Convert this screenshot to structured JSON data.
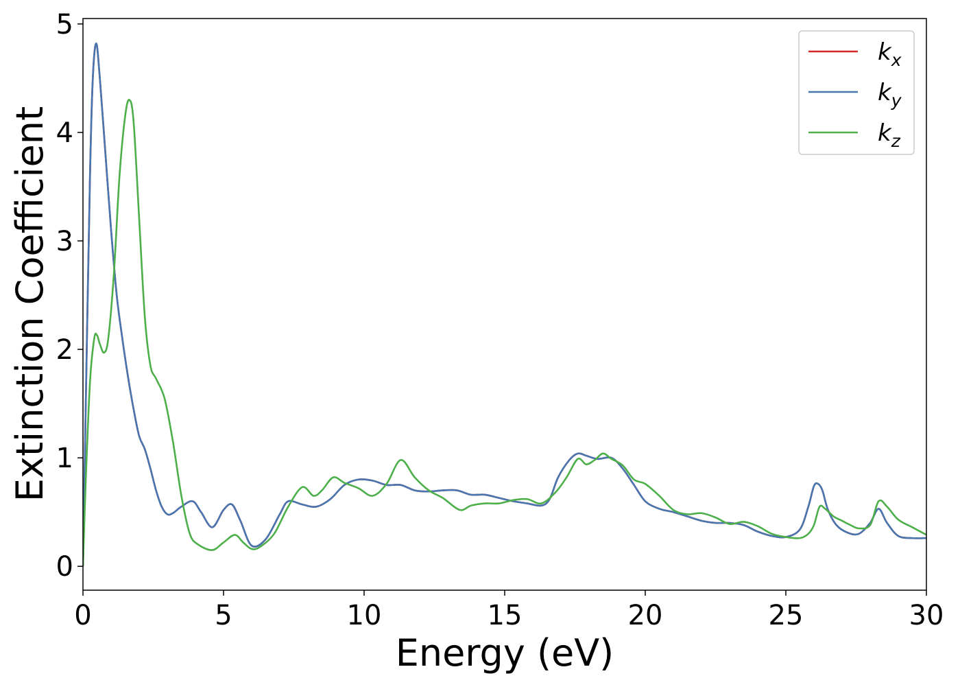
{
  "chart_data": {
    "type": "line",
    "title": "",
    "xlabel": "Energy (eV)",
    "ylabel": "Extinction Coefficient",
    "xlim": [
      0,
      30
    ],
    "ylim": [
      -0.22,
      5.05
    ],
    "xticks": [
      0,
      5,
      10,
      15,
      20,
      25,
      30
    ],
    "yticks": [
      0,
      1,
      2,
      3,
      4,
      5
    ],
    "grid": false,
    "legend_position": "top-right",
    "series": [
      {
        "name": "k_x",
        "legend_base": "k",
        "legend_sub": "x",
        "color": "#d62728",
        "x": [
          0,
          0.1,
          0.25,
          0.35,
          0.47,
          0.6,
          0.8,
          1.0,
          1.2,
          1.4,
          1.6,
          1.8,
          2.0,
          2.2,
          2.4,
          2.6,
          2.8,
          3.0,
          3.2,
          3.5,
          3.9,
          4.2,
          4.6,
          5.0,
          5.3,
          5.6,
          6.0,
          6.5,
          7.0,
          7.3,
          7.8,
          8.3,
          8.8,
          9.3,
          9.8,
          10.3,
          10.8,
          11.3,
          11.8,
          12.3,
          12.8,
          13.3,
          13.8,
          14.3,
          14.8,
          15.3,
          15.8,
          16.3,
          16.6,
          16.9,
          17.3,
          17.6,
          17.9,
          18.3,
          18.8,
          19.2,
          19.6,
          20.0,
          20.5,
          21.0,
          21.5,
          22.0,
          22.5,
          23.0,
          23.5,
          24.0,
          24.5,
          25.0,
          25.5,
          25.8,
          26.0,
          26.15,
          26.3,
          26.5,
          26.8,
          27.2,
          27.6,
          28.0,
          28.3,
          28.6,
          29.0,
          29.5,
          30.0
        ],
        "y": [
          0,
          1.5,
          3.6,
          4.5,
          4.82,
          4.5,
          3.8,
          3.1,
          2.5,
          2.1,
          1.75,
          1.45,
          1.2,
          1.08,
          0.9,
          0.7,
          0.55,
          0.48,
          0.49,
          0.55,
          0.6,
          0.5,
          0.36,
          0.52,
          0.57,
          0.42,
          0.19,
          0.25,
          0.48,
          0.6,
          0.57,
          0.55,
          0.62,
          0.75,
          0.8,
          0.79,
          0.75,
          0.75,
          0.7,
          0.69,
          0.7,
          0.7,
          0.66,
          0.66,
          0.63,
          0.6,
          0.58,
          0.56,
          0.62,
          0.82,
          0.98,
          1.04,
          1.02,
          0.99,
          1.0,
          0.9,
          0.75,
          0.6,
          0.53,
          0.5,
          0.46,
          0.42,
          0.4,
          0.4,
          0.38,
          0.32,
          0.28,
          0.27,
          0.34,
          0.55,
          0.74,
          0.76,
          0.7,
          0.52,
          0.38,
          0.31,
          0.3,
          0.4,
          0.53,
          0.4,
          0.28,
          0.26,
          0.26
        ]
      },
      {
        "name": "k_y",
        "legend_base": "k",
        "legend_sub": "y",
        "color": "#4876b0",
        "x": [
          0,
          0.1,
          0.25,
          0.35,
          0.47,
          0.6,
          0.8,
          1.0,
          1.2,
          1.4,
          1.6,
          1.8,
          2.0,
          2.2,
          2.4,
          2.6,
          2.8,
          3.0,
          3.2,
          3.5,
          3.9,
          4.2,
          4.6,
          5.0,
          5.3,
          5.6,
          6.0,
          6.5,
          7.0,
          7.3,
          7.8,
          8.3,
          8.8,
          9.3,
          9.8,
          10.3,
          10.8,
          11.3,
          11.8,
          12.3,
          12.8,
          13.3,
          13.8,
          14.3,
          14.8,
          15.3,
          15.8,
          16.3,
          16.6,
          16.9,
          17.3,
          17.6,
          17.9,
          18.3,
          18.8,
          19.2,
          19.6,
          20.0,
          20.5,
          21.0,
          21.5,
          22.0,
          22.5,
          23.0,
          23.5,
          24.0,
          24.5,
          25.0,
          25.5,
          25.8,
          26.0,
          26.15,
          26.3,
          26.5,
          26.8,
          27.2,
          27.6,
          28.0,
          28.3,
          28.6,
          29.0,
          29.5,
          30.0
        ],
        "y": [
          0,
          1.5,
          3.6,
          4.5,
          4.82,
          4.5,
          3.8,
          3.1,
          2.5,
          2.1,
          1.75,
          1.45,
          1.2,
          1.08,
          0.9,
          0.7,
          0.55,
          0.48,
          0.49,
          0.55,
          0.6,
          0.5,
          0.36,
          0.52,
          0.57,
          0.42,
          0.19,
          0.25,
          0.48,
          0.6,
          0.57,
          0.55,
          0.62,
          0.75,
          0.8,
          0.79,
          0.75,
          0.75,
          0.7,
          0.69,
          0.7,
          0.7,
          0.66,
          0.66,
          0.63,
          0.6,
          0.58,
          0.56,
          0.62,
          0.82,
          0.98,
          1.04,
          1.02,
          0.99,
          1.0,
          0.9,
          0.75,
          0.6,
          0.53,
          0.5,
          0.46,
          0.42,
          0.4,
          0.4,
          0.38,
          0.32,
          0.28,
          0.27,
          0.34,
          0.55,
          0.74,
          0.76,
          0.7,
          0.52,
          0.38,
          0.31,
          0.3,
          0.4,
          0.53,
          0.4,
          0.28,
          0.26,
          0.26
        ]
      },
      {
        "name": "k_z",
        "legend_base": "k",
        "legend_sub": "z",
        "color": "#4daf4a",
        "x": [
          0,
          0.1,
          0.25,
          0.4,
          0.5,
          0.6,
          0.75,
          0.9,
          1.1,
          1.3,
          1.5,
          1.65,
          1.8,
          2.0,
          2.2,
          2.4,
          2.6,
          2.9,
          3.2,
          3.5,
          3.8,
          4.1,
          4.6,
          5.0,
          5.4,
          5.7,
          6.0,
          6.3,
          6.8,
          7.3,
          7.8,
          8.2,
          8.5,
          8.9,
          9.3,
          9.8,
          10.3,
          10.8,
          11.3,
          11.8,
          12.3,
          12.8,
          13.4,
          13.8,
          14.3,
          14.8,
          15.3,
          15.8,
          16.3,
          16.8,
          17.2,
          17.6,
          17.9,
          18.2,
          18.5,
          18.8,
          19.2,
          19.6,
          20.0,
          20.5,
          21.0,
          21.5,
          22.0,
          22.5,
          23.0,
          23.5,
          24.0,
          24.5,
          25.0,
          25.5,
          25.8,
          26.0,
          26.2,
          26.4,
          26.7,
          27.0,
          27.3,
          27.6,
          28.0,
          28.3,
          28.6,
          29.0,
          29.5,
          30.0
        ],
        "y": [
          0,
          0.8,
          1.7,
          2.1,
          2.13,
          2.05,
          1.97,
          2.1,
          2.7,
          3.6,
          4.15,
          4.3,
          4.1,
          3.2,
          2.3,
          1.85,
          1.73,
          1.55,
          1.15,
          0.65,
          0.3,
          0.2,
          0.15,
          0.22,
          0.29,
          0.22,
          0.16,
          0.18,
          0.3,
          0.55,
          0.73,
          0.65,
          0.7,
          0.82,
          0.77,
          0.72,
          0.65,
          0.76,
          0.98,
          0.82,
          0.7,
          0.63,
          0.52,
          0.56,
          0.58,
          0.58,
          0.61,
          0.62,
          0.58,
          0.68,
          0.82,
          0.99,
          0.94,
          0.98,
          1.04,
          0.99,
          0.93,
          0.8,
          0.76,
          0.65,
          0.52,
          0.48,
          0.49,
          0.45,
          0.39,
          0.41,
          0.37,
          0.3,
          0.27,
          0.26,
          0.3,
          0.38,
          0.55,
          0.53,
          0.46,
          0.42,
          0.38,
          0.35,
          0.38,
          0.6,
          0.55,
          0.43,
          0.36,
          0.29
        ]
      }
    ]
  }
}
